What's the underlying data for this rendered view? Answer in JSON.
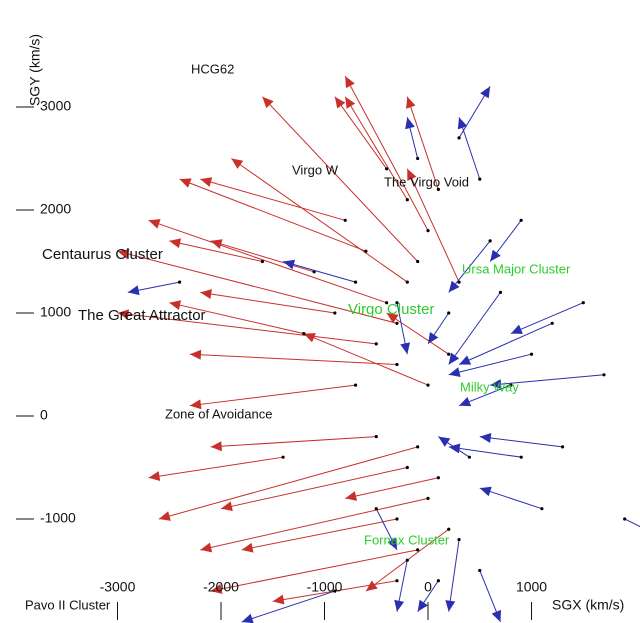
{
  "chart_data": {
    "type": "quiver",
    "xlabel": "SGX (km/s)",
    "ylabel": "SGY (km/s)",
    "xlim": [
      -4135,
      2048
    ],
    "ylim": [
      -2010,
      4039
    ],
    "xticks": [
      -3000,
      -2000,
      -1000,
      0,
      1000
    ],
    "yticks": [
      -1000,
      0,
      1000,
      2000,
      3000
    ],
    "annotations": [
      "HCG62",
      "Virgo W",
      "The Virgo Void",
      "Centaurus Cluster",
      "The Great Attractor",
      "Virgo Cluster",
      "Ursa Major Cluster",
      "Milky Way",
      "Zone of Avoidance",
      "Fornax Cluster",
      "Pavo II Cluster"
    ],
    "series": [
      {
        "color": "#c8302c",
        "x": [
          -300,
          -400,
          -200,
          -500,
          -100,
          -300,
          0,
          -200,
          100,
          -600,
          -700,
          -100,
          -200,
          0,
          -300,
          -100,
          100,
          200,
          -800,
          -400,
          300,
          0,
          -900,
          -1200,
          -1100,
          -500,
          -300,
          200,
          -1600,
          -1400
        ],
        "values": [
          900,
          1100,
          1300,
          700,
          1500,
          500,
          1800,
          2100,
          2200,
          1600,
          300,
          -300,
          -500,
          -800,
          -1000,
          -1300,
          -600,
          600,
          1900,
          2400,
          1300,
          300,
          1000,
          800,
          1400,
          -200,
          -1600,
          -1100,
          1500,
          -400
        ],
        "dx": [
          -2700,
          -2300,
          -1700,
          -2500,
          -1500,
          -2000,
          -800,
          -600,
          -300,
          -1800,
          -1600,
          -2500,
          -1800,
          -2200,
          -1500,
          -2000,
          -900,
          -600,
          -1400,
          -500,
          -500,
          -1200,
          -1300,
          -1300,
          -1000,
          -1600,
          -1200,
          -800,
          -900,
          -1300
        ],
        "dy": [
          700,
          800,
          1200,
          300,
          1600,
          100,
          1500,
          1000,
          900,
          700,
          -200,
          -700,
          -400,
          -500,
          -300,
          -400,
          -200,
          400,
          400,
          700,
          1100,
          500,
          200,
          300,
          300,
          -100,
          -200,
          -600,
          200,
          -200
        ]
      },
      {
        "color": "#2a2fb0",
        "x": [
          700,
          1200,
          900,
          500,
          300,
          -100,
          1500,
          1000,
          300,
          500,
          -200,
          1300,
          800,
          600,
          -300,
          1700,
          1100,
          -700,
          -2400,
          100,
          -900,
          1900,
          400,
          -500,
          900,
          200
        ],
        "values": [
          1200,
          900,
          -400,
          2300,
          2700,
          2500,
          1100,
          600,
          -1200,
          -1500,
          -1400,
          -300,
          300,
          1700,
          1100,
          400,
          -900,
          1300,
          1300,
          -1600,
          -1700,
          -1000,
          -400,
          -900,
          1900,
          1000
        ],
        "dx": [
          -500,
          -900,
          -700,
          -200,
          300,
          -100,
          -700,
          -800,
          -100,
          200,
          -100,
          -800,
          -500,
          -400,
          100,
          -1100,
          -600,
          -700,
          -500,
          -200,
          -900,
          400,
          -300,
          200,
          -300,
          -200
        ],
        "dy": [
          -700,
          -400,
          100,
          600,
          500,
          400,
          -300,
          -200,
          -700,
          -500,
          -500,
          100,
          -200,
          -500,
          -500,
          -100,
          200,
          200,
          -100,
          -300,
          -300,
          -200,
          200,
          -400,
          -400,
          -300
        ]
      }
    ]
  }
}
